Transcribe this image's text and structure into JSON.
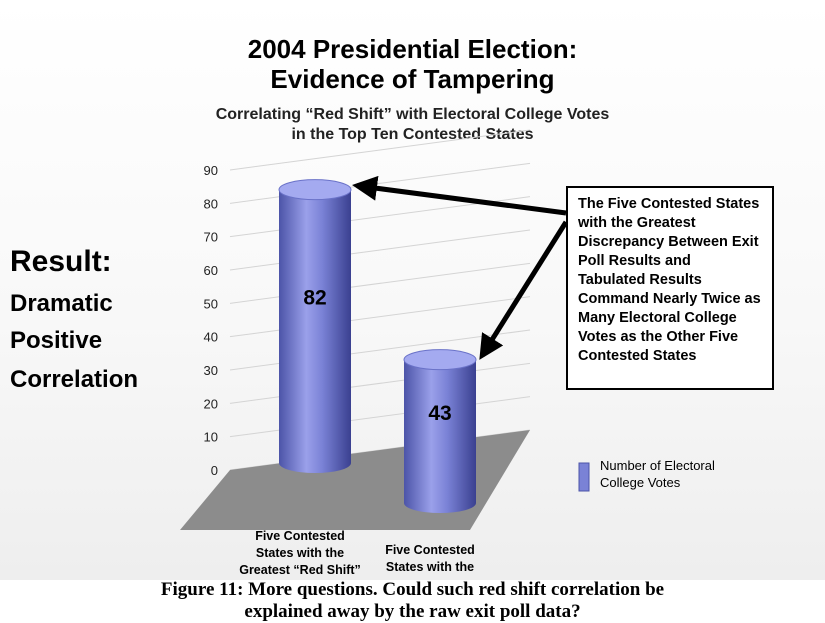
{
  "chart_data": {
    "type": "bar",
    "title_lines": [
      "2004 Presidential Election:",
      "Evidence of Tampering"
    ],
    "subtitle_lines": [
      "Correlating “Red Shift” with Electoral College Votes",
      "in the Top Ten Contested States"
    ],
    "categories": [
      [
        "Five Contested",
        "States with the",
        "Greatest “Red Shift”"
      ],
      [
        "Five Contested",
        "States with the"
      ]
    ],
    "series": [
      {
        "name": "Number of Electoral College Votes",
        "values": [
          82,
          43
        ],
        "color": "#7a82d6"
      }
    ],
    "data_labels": [
      "82",
      "43"
    ],
    "y_ticks": [
      0,
      10,
      20,
      30,
      40,
      50,
      60,
      70,
      80,
      90
    ],
    "ylim": [
      0,
      90
    ],
    "style": "3d-cylinder",
    "grid": true,
    "legend": "right",
    "legend_lines": [
      "Number of Electoral",
      "College Votes"
    ]
  },
  "result": {
    "heading": "Result:",
    "lines": [
      "Dramatic",
      "Positive",
      "Correlation"
    ]
  },
  "callout": {
    "text": "The Five Contested States with the Greatest Discrepancy Between Exit Poll Results and Tabulated Results Command Nearly Twice as Many Electoral College Votes as the Other Five Contested States"
  },
  "caption": {
    "lines": [
      "Figure 11: More questions.  Could such red shift correlation be",
      "explained away by the raw exit poll data?"
    ]
  },
  "colors": {
    "bar": "#7a82d6",
    "floor": "#8c8c8c",
    "arrow": "#000000"
  }
}
